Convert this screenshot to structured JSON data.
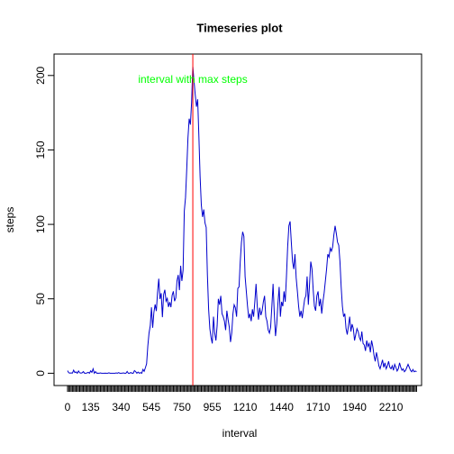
{
  "chart_data": {
    "type": "line",
    "title": "Timeseries plot",
    "x_label": "interval",
    "y_label": "steps",
    "annotation": "interval with max steps",
    "annotation_color": "#00ff00",
    "vline_color": "red",
    "color": "#0000cc",
    "ylim": [
      -8.25,
      214.4
    ],
    "yticks": [
      0,
      50,
      100,
      150,
      200
    ],
    "categories": [
      "0",
      null,
      null,
      null,
      null,
      null,
      null,
      null,
      null,
      null,
      null,
      null,
      null,
      null,
      null,
      null,
      null,
      null,
      null,
      "135",
      null,
      null,
      null,
      null,
      null,
      null,
      null,
      null,
      null,
      null,
      null,
      null,
      null,
      null,
      null,
      null,
      null,
      null,
      null,
      null,
      null,
      null,
      null,
      null,
      "340",
      null,
      null,
      null,
      null,
      null,
      null,
      null,
      null,
      null,
      null,
      null,
      null,
      null,
      null,
      null,
      null,
      null,
      null,
      null,
      null,
      null,
      null,
      null,
      null,
      "545",
      null,
      null,
      null,
      null,
      null,
      null,
      null,
      null,
      null,
      null,
      null,
      null,
      null,
      null,
      null,
      null,
      null,
      null,
      null,
      null,
      null,
      null,
      null,
      null,
      "750",
      null,
      null,
      null,
      null,
      null,
      null,
      null,
      null,
      null,
      null,
      null,
      null,
      null,
      null,
      null,
      null,
      null,
      null,
      null,
      null,
      null,
      null,
      null,
      null,
      "955",
      null,
      null,
      null,
      null,
      null,
      null,
      null,
      null,
      null,
      null,
      null,
      null,
      null,
      null,
      null,
      null,
      null,
      null,
      null,
      null,
      null,
      null,
      null,
      null,
      null,
      null,
      "1210",
      null,
      null,
      null,
      null,
      null,
      null,
      null,
      null,
      null,
      null,
      null,
      null,
      null,
      null,
      null,
      null,
      null,
      null,
      null,
      null,
      null,
      null,
      null,
      null,
      null,
      null,
      null,
      null,
      null,
      "1440",
      null,
      null,
      null,
      null,
      null,
      null,
      null,
      null,
      null,
      null,
      null,
      null,
      null,
      null,
      null,
      null,
      null,
      null,
      null,
      null,
      null,
      null,
      null,
      null,
      null,
      null,
      null,
      null,
      null,
      "1710",
      null,
      null,
      null,
      null,
      null,
      null,
      null,
      null,
      null,
      null,
      null,
      null,
      null,
      null,
      null,
      null,
      null,
      null,
      null,
      null,
      null,
      null,
      null,
      null,
      null,
      null,
      null,
      null,
      null,
      "1940",
      null,
      null,
      null,
      null,
      null,
      null,
      null,
      null,
      null,
      null,
      null,
      null,
      null,
      null,
      null,
      null,
      null,
      null,
      null,
      null,
      null,
      null,
      null,
      null,
      null,
      null,
      null,
      null,
      null,
      "2210",
      null,
      null,
      null,
      null,
      null,
      null,
      null,
      null,
      null,
      null,
      null,
      null,
      null,
      null,
      null,
      null,
      null,
      null,
      null,
      null,
      null
    ],
    "values": [
      1.7,
      0.3,
      0.1,
      0.2,
      0.1,
      2.1,
      0.5,
      0.9,
      0,
      1.5,
      0.3,
      0.1,
      0.3,
      1.1,
      0,
      0,
      0.2,
      0.6,
      0,
      1.6,
      0.6,
      3.0,
      0,
      1.1,
      0,
      0.1,
      0,
      0.2,
      0,
      0,
      0,
      0.1,
      0,
      0,
      0.3,
      0,
      0,
      0,
      0,
      0,
      0.2,
      0,
      0.4,
      0,
      0,
      0.1,
      0.2,
      0,
      0,
      1.2,
      0,
      0,
      0.5,
      0,
      0,
      1.8,
      1.1,
      0,
      0.8,
      0,
      0.4,
      0,
      2.6,
      1.3,
      3.7,
      6.3,
      18.3,
      27,
      31.9,
      44.3,
      30.6,
      40.9,
      46.2,
      41.8,
      54.2,
      63.5,
      49.9,
      53.8,
      37.7,
      52.8,
      56.1,
      48.4,
      50.3,
      44.5,
      47.8,
      44.4,
      52.4,
      55.0,
      48.4,
      50.6,
      62.1,
      66.0,
      55.8,
      72.2,
      62.0,
      69.2,
      109,
      118,
      137,
      158,
      171,
      167,
      182,
      206,
      196,
      187,
      179,
      184,
      159,
      132,
      113,
      105,
      110,
      101,
      98,
      66,
      43,
      30,
      24,
      20,
      38,
      27,
      22,
      32,
      50,
      46,
      52,
      40,
      38,
      35,
      29,
      42,
      36,
      31,
      21,
      27,
      40,
      46,
      44,
      38,
      57,
      58,
      75,
      88,
      95,
      92,
      65,
      55,
      45,
      37,
      40,
      35,
      43,
      38,
      48,
      60,
      45,
      36,
      44,
      39,
      42,
      48,
      52,
      38,
      35,
      29,
      27,
      31,
      45,
      60,
      40,
      25,
      33,
      47,
      58,
      38,
      48,
      45,
      55,
      48,
      65,
      85,
      99,
      102,
      88,
      75,
      70,
      80,
      64,
      55,
      45,
      38,
      42,
      37,
      44,
      50,
      52,
      65,
      46,
      60,
      75,
      70,
      56,
      45,
      42,
      52,
      55,
      45,
      50,
      40,
      48,
      54,
      62,
      70,
      80,
      78,
      84,
      82,
      85,
      93,
      99,
      94,
      88,
      86,
      75,
      58,
      45,
      38,
      40,
      30,
      26,
      32,
      38,
      28,
      33,
      30,
      22,
      26,
      30,
      28,
      24,
      22,
      28,
      20,
      19,
      15,
      22,
      18,
      20,
      14,
      22,
      18,
      12,
      8,
      14,
      10,
      5,
      3,
      6,
      9,
      4,
      7,
      3,
      5,
      8,
      4,
      3,
      5,
      2,
      6,
      4,
      1.5,
      3,
      7,
      4,
      2,
      3,
      1,
      2,
      4,
      6,
      4,
      2,
      1,
      2.5,
      1,
      1.5,
      1.1
    ]
  }
}
